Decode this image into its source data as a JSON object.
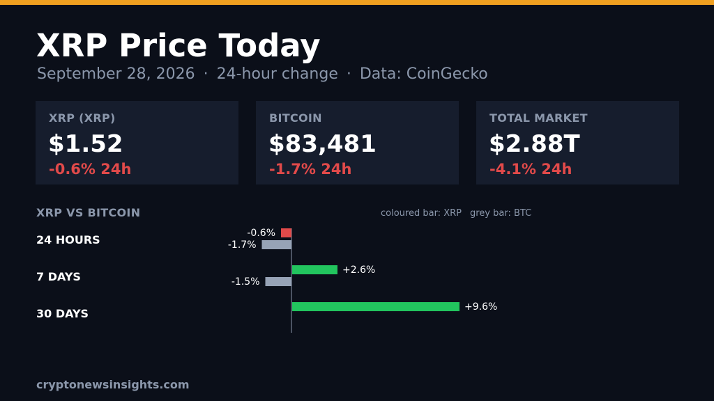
{
  "header": {
    "title": "XRP Price Today",
    "subtitle_date": "September 28, 2026",
    "subtitle_sep": "·",
    "subtitle_change": "24-hour change",
    "subtitle_source": "Data: CoinGecko"
  },
  "cards": [
    {
      "label": "XRP (XRP)",
      "value": "$1.52",
      "change": "-0.6% 24h"
    },
    {
      "label": "BITCOIN",
      "value": "$83,481",
      "change": "-1.7% 24h"
    },
    {
      "label": "TOTAL MARKET",
      "value": "$2.88T",
      "change": "-4.1% 24h"
    }
  ],
  "colors": {
    "accent_stripe": "#f0a020",
    "negative": "#e24a4a",
    "positive": "#22c55e",
    "btc_bar": "#97a3b6",
    "background": "#0b0f19",
    "card_background": "#161d2d"
  },
  "chart_data": {
    "type": "bar",
    "orientation": "horizontal",
    "title": "XRP VS BITCOIN",
    "legend_note": {
      "xrp": "coloured bar: XRP",
      "btc": "grey bar: BTC"
    },
    "categories": [
      "24 HOURS",
      "7 DAYS",
      "30 DAYS"
    ],
    "series": [
      {
        "key": "xrp",
        "values": [
          -0.6,
          2.6,
          9.6
        ],
        "labels": [
          "-0.6%",
          "+2.6%",
          "+9.6%"
        ]
      },
      {
        "key": "btc",
        "values": [
          -1.7,
          -1.5,
          null
        ],
        "labels": [
          "-1.7%",
          "-1.5%",
          ""
        ]
      }
    ],
    "units": "%",
    "grid": false
  },
  "footer": {
    "site": "cryptonewsinsights.com"
  }
}
